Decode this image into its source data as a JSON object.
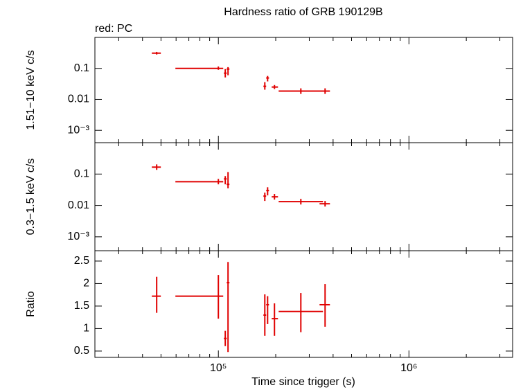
{
  "chart_data": [
    {
      "type": "errorbar",
      "title": "Hardness ratio of GRB 190129B",
      "label": "red: PC",
      "ylabel": "1.51−10 keV c/s",
      "log_x": true,
      "log_y": true,
      "xlim": [
        22500,
        3500000
      ],
      "ylim": [
        0.0004,
        1
      ],
      "yticks": [
        0.1,
        0.01,
        {
          "value": 0.001,
          "label": "10⁻³"
        }
      ],
      "series": [
        {
          "color": "#e00000",
          "x": [
            47460,
            100000,
            108700,
            112400,
            175300,
            181300,
            197000,
            270900,
            363100
          ],
          "xlo": [
            44760,
            59500,
            106900,
            110600,
            172300,
            178200,
            190500,
            207200,
            339600
          ],
          "xhi": [
            49910,
            106050,
            110600,
            114350,
            178200,
            184400,
            205500,
            354000,
            385000
          ],
          "y": [
            0.31,
            0.1,
            0.07,
            0.095,
            0.0264,
            0.049,
            0.025,
            0.0185,
            0.0185
          ],
          "ylo": [
            0.28,
            0.09,
            0.051,
            0.06,
            0.0205,
            0.038,
            0.0215,
            0.015,
            0.015
          ],
          "yhi": [
            0.34,
            0.115,
            0.095,
            0.11,
            0.036,
            0.057,
            0.029,
            0.0227,
            0.0227
          ]
        }
      ]
    },
    {
      "type": "errorbar",
      "ylabel": "0.3−1.5 keV c/s",
      "log_x": true,
      "log_y": true,
      "xlim": [
        22500,
        3500000
      ],
      "ylim": [
        0.00036,
        1
      ],
      "yticks": [
        0.1,
        0.01,
        {
          "value": 0.001,
          "label": "10⁻³"
        }
      ],
      "series": [
        {
          "color": "#e00000",
          "x": [
            47460,
            100000,
            108700,
            112400,
            175300,
            181300,
            197000,
            270900,
            363100
          ],
          "xlo": [
            44760,
            59500,
            106900,
            110600,
            172300,
            178200,
            190500,
            207200,
            339600
          ],
          "xhi": [
            49910,
            106050,
            110600,
            114350,
            178200,
            184400,
            205500,
            354000,
            385000
          ],
          "y": [
            0.166,
            0.057,
            0.07,
            0.047,
            0.0198,
            0.0297,
            0.0188,
            0.0132,
            0.0113
          ],
          "ylo": [
            0.136,
            0.047,
            0.047,
            0.035,
            0.0139,
            0.0209,
            0.0153,
            0.0107,
            0.0092
          ],
          "yhi": [
            0.203,
            0.07,
            0.086,
            0.116,
            0.0255,
            0.038,
            0.0232,
            0.0162,
            0.0139
          ]
        }
      ]
    },
    {
      "type": "errorbar",
      "ylabel": "Ratio",
      "xlabel": "Time since trigger (s)",
      "log_x": true,
      "log_y": false,
      "xlim": [
        22500,
        3500000
      ],
      "ylim": [
        0.36,
        2.73
      ],
      "xticks": [
        {
          "value": 100000,
          "label": "10⁵"
        },
        {
          "value": 1000000,
          "label": "10⁶"
        }
      ],
      "xminor": [
        30000,
        40000,
        50000,
        60000,
        70000,
        80000,
        90000,
        200000,
        300000,
        400000,
        500000,
        600000,
        700000,
        800000,
        900000,
        2000000,
        3000000
      ],
      "yticks": [
        0.5,
        1,
        1.5,
        2,
        2.5
      ],
      "series": [
        {
          "color": "#e00000",
          "x": [
            47460,
            100000,
            108700,
            112400,
            175300,
            181300,
            197000,
            270900,
            363100
          ],
          "xlo": [
            44760,
            59500,
            106900,
            110600,
            172300,
            178200,
            190500,
            207200,
            339600
          ],
          "xhi": [
            49910,
            106050,
            110600,
            114350,
            178200,
            184400,
            205500,
            354000,
            385000
          ],
          "y": [
            1.72,
            1.72,
            0.78,
            2.02,
            1.3,
            1.53,
            1.22,
            1.38,
            1.53
          ],
          "ylo": [
            1.35,
            1.22,
            0.61,
            0.48,
            0.84,
            1.1,
            0.84,
            0.92,
            1.04
          ],
          "yhi": [
            2.15,
            2.19,
            0.95,
            2.48,
            1.76,
            1.72,
            1.56,
            1.79,
            1.99
          ]
        }
      ]
    }
  ]
}
